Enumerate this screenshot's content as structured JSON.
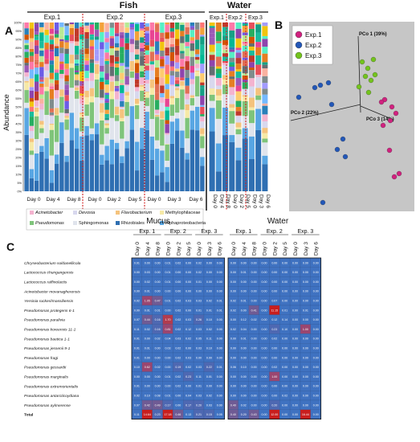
{
  "panel_a": {
    "letter": "A",
    "fish_label": "Fish",
    "water_label": "Water",
    "fish_groups": [
      "Exp.1",
      "Exp.2",
      "Exp.3"
    ],
    "water_groups": [
      "Exp.1",
      "Exp.2",
      "Exp.3"
    ],
    "ylabel": "Abundance",
    "fish_day_labels": [
      "Day 0",
      "Day 4",
      "Day 8",
      "Day 0",
      "Day 2",
      "Day 5",
      "Day 0",
      "Day 3",
      "Day 6"
    ],
    "water_day_labels": [
      "Day 0",
      "Day 4",
      "Day 8",
      "Day 0",
      "Day 2",
      "Day 5",
      "Day 0",
      "Day 3",
      "Day 6"
    ],
    "yticks": [
      "0%",
      "5%",
      "10%",
      "15%",
      "20%",
      "25%",
      "30%",
      "35%",
      "40%",
      "45%",
      "50%",
      "55%",
      "60%",
      "65%",
      "70%",
      "75%",
      "80%",
      "85%",
      "90%",
      "95%",
      "100%"
    ],
    "legend": [
      {
        "name": "Acinetobacter",
        "color": "#f4b3cf",
        "italic": true
      },
      {
        "name": "Devosia",
        "color": "#d8d8ee",
        "italic": true
      },
      {
        "name": "Flavobacterium",
        "color": "#f5c37d",
        "italic": true
      },
      {
        "name": "Methylophilaceae",
        "color": "#f6e9a6",
        "italic": false
      },
      {
        "name": "Pseudomonas",
        "color": "#7fc47a",
        "italic": true
      },
      {
        "name": "Sphingomonas",
        "color": "#e0e4ec",
        "italic": false
      },
      {
        "name": "Rhizobiales",
        "color": "#2f6fb2",
        "italic": false
      },
      {
        "name": "Alphaproteobacteria",
        "color": "#58a6e3",
        "italic": false
      }
    ]
  },
  "panel_b": {
    "letter": "B",
    "legend": [
      {
        "name": "Exp.1",
        "color": "#d1217f"
      },
      {
        "name": "Exp.2",
        "color": "#2257b8"
      },
      {
        "name": "Exp.3",
        "color": "#73c41c"
      }
    ],
    "axes": {
      "pco1": "PCo 1 (39%)",
      "pco2": "PCo 2 (22%)",
      "pco3": "PCo 3 (14%)"
    }
  },
  "panel_c": {
    "letter": "C",
    "mucus_label": "Mucus",
    "water_label": "Water",
    "groups": [
      "Exp. 1",
      "Exp. 2",
      "Exp. 3"
    ],
    "days": [
      "Day 0",
      "Day 4",
      "Day 8",
      "Day 0",
      "Day 2",
      "Day 5",
      "Day 0",
      "Day 3",
      "Day 6"
    ],
    "rows": [
      "Chryseobacterium soldanellicola",
      "Lactococcus chungangensis",
      "Lactococcus raffinolactis",
      "Acinetobacter movanagherensis",
      "Yersinia ruckeri/massiliensis",
      "Pseudomonas protegens 6-1",
      "Pseudomonas paralivia",
      "Pseudomonas koreensis 11-1",
      "Pseudomonas baetica 1-1",
      "Pseudomonas jessenii 9-1",
      "Pseudomonas fragi",
      "Pseudomonas gessardii",
      "Pseudomonas marginalis",
      "Pseudomonas extremorientalis",
      "Pseudomonas antarcticoydiana",
      "Pseudomonas aylmerense",
      "Total"
    ],
    "mucus_values": [
      [
        "0.01",
        "0.00",
        "0.00",
        "0.01",
        "0.02",
        "0.00",
        "0.02",
        "0.00",
        "0.00"
      ],
      [
        "0.00",
        "0.03",
        "0.00",
        "0.01",
        "0.00",
        "0.00",
        "0.02",
        "0.00",
        "0.00"
      ],
      [
        "0.00",
        "0.02",
        "0.00",
        "0.01",
        "0.00",
        "0.00",
        "0.01",
        "0.00",
        "0.00"
      ],
      [
        "0.00",
        "0.01",
        "0.00",
        "0.00",
        "0.00",
        "0.00",
        "0.00",
        "0.00",
        "0.00"
      ],
      [
        "0.02",
        "1.05",
        "0.47",
        "0.01",
        "0.02",
        "0.03",
        "0.03",
        "0.02",
        "0.01"
      ],
      [
        "0.00",
        "0.01",
        "0.01",
        "0.00",
        "0.02",
        "0.00",
        "0.01",
        "0.01",
        "0.01"
      ],
      [
        "0.07",
        "0.44",
        "0.16",
        "1.70",
        "0.02",
        "0.03",
        "0.26",
        "0.10",
        "0.00"
      ],
      [
        "0.11",
        "0.02",
        "0.16",
        "0.81",
        "0.02",
        "0.12",
        "0.03",
        "0.02",
        "0.00"
      ],
      [
        "0.01",
        "0.00",
        "0.02",
        "0.04",
        "0.03",
        "0.02",
        "0.05",
        "0.11",
        "0.00"
      ],
      [
        "0.01",
        "0.01",
        "0.00",
        "0.03",
        "0.02",
        "0.00",
        "0.03",
        "0.10",
        "0.00"
      ],
      [
        "0.01",
        "0.00",
        "0.00",
        "0.00",
        "0.02",
        "0.03",
        "0.00",
        "0.00",
        "0.00"
      ],
      [
        "0.10",
        "0.62",
        "0.02",
        "0.00",
        "0.19",
        "0.02",
        "0.03",
        "0.22",
        "0.01"
      ],
      [
        "0.00",
        "0.00",
        "0.00",
        "0.01",
        "0.02",
        "0.23",
        "0.11",
        "0.01",
        "0.00"
      ],
      [
        "0.01",
        "0.00",
        "0.00",
        "0.00",
        "0.02",
        "0.00",
        "0.01",
        "0.00",
        "0.00"
      ],
      [
        "0.02",
        "0.10",
        "0.08",
        "0.01",
        "0.00",
        "0.04",
        "0.03",
        "0.02",
        "0.00"
      ],
      [
        "0.07",
        "0.42",
        "0.49",
        "0.17",
        "0.00",
        "0.17",
        "0.20",
        "0.03",
        "0.00"
      ],
      [
        "0.11",
        "14.64",
        "0.23",
        "17.18",
        "0.46",
        "0.13",
        "0.21",
        "0.15",
        "0.05"
      ]
    ],
    "water_values": [
      [
        "0.00",
        "0.00",
        "0.00",
        "0.00",
        "0.00",
        "0.00",
        "0.00",
        "0.00",
        "0.00"
      ],
      [
        "0.00",
        "0.01",
        "0.00",
        "0.00",
        "0.00",
        "0.00",
        "0.00",
        "0.00",
        "0.00"
      ],
      [
        "0.00",
        "0.00",
        "0.00",
        "0.00",
        "0.00",
        "0.00",
        "0.00",
        "0.00",
        "0.00"
      ],
      [
        "0.00",
        "0.00",
        "0.00",
        "0.00",
        "0.00",
        "0.00",
        "0.00",
        "0.00",
        "0.00"
      ],
      [
        "0.02",
        "0.01",
        "0.00",
        "0.00",
        "0.07",
        "0.00",
        "0.00",
        "0.00",
        "0.00"
      ],
      [
        "0.02",
        "0.00",
        "0.41",
        "0.00",
        "11.15",
        "0.01",
        "0.00",
        "0.01",
        "0.00"
      ],
      [
        "0.00",
        "0.12",
        "0.02",
        "0.00",
        "0.12",
        "0.14",
        "0.00",
        "0.00",
        "0.00"
      ],
      [
        "0.02",
        "0.04",
        "0.00",
        "0.00",
        "0.23",
        "0.10",
        "0.00",
        "1.00",
        "0.00"
      ],
      [
        "0.00",
        "0.01",
        "0.00",
        "0.00",
        "0.02",
        "0.00",
        "0.00",
        "0.00",
        "0.00"
      ],
      [
        "0.00",
        "0.00",
        "0.00",
        "0.00",
        "0.00",
        "0.00",
        "0.00",
        "0.00",
        "0.00"
      ],
      [
        "0.00",
        "0.00",
        "0.00",
        "0.00",
        "0.00",
        "0.00",
        "0.00",
        "0.00",
        "0.00"
      ],
      [
        "0.06",
        "0.10",
        "0.00",
        "0.00",
        "0.02",
        "0.00",
        "0.00",
        "0.00",
        "0.00"
      ],
      [
        "0.00",
        "0.00",
        "0.00",
        "0.00",
        "1.00",
        "0.00",
        "0.00",
        "0.00",
        "0.00"
      ],
      [
        "0.00",
        "0.00",
        "0.00",
        "0.00",
        "0.00",
        "0.00",
        "0.00",
        "0.00",
        "0.00"
      ],
      [
        "0.00",
        "0.00",
        "0.00",
        "0.00",
        "0.00",
        "0.02",
        "0.00",
        "0.00",
        "0.00"
      ],
      [
        "0.40",
        "0.02",
        "0.00",
        "0.00",
        "0.20",
        "0.00",
        "0.00",
        "0.00",
        "0.00"
      ],
      [
        "0.40",
        "0.20",
        "0.43",
        "0.00",
        "12.00",
        "0.00",
        "0.00",
        "16.44",
        "0.00"
      ]
    ]
  }
}
